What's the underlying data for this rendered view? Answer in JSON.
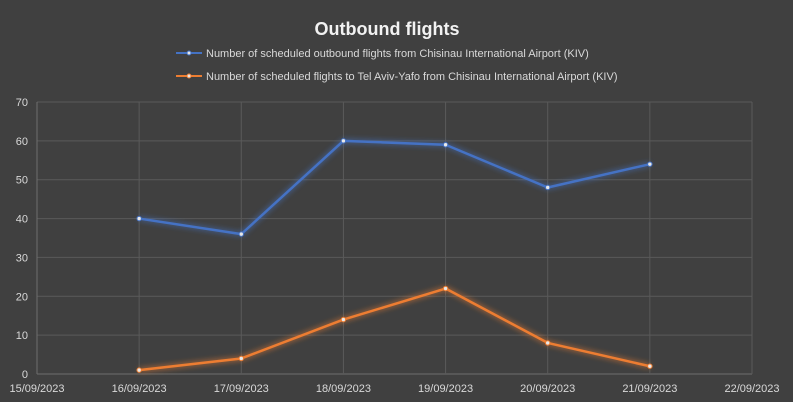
{
  "chart_data": {
    "type": "line",
    "title": "Outbound flights",
    "x_ticks": [
      "15/09/2023",
      "16/09/2023",
      "17/09/2023",
      "18/09/2023",
      "19/09/2023",
      "20/09/2023",
      "21/09/2023",
      "22/09/2023"
    ],
    "y_ticks": [
      "0",
      "10",
      "20",
      "30",
      "40",
      "50",
      "60",
      "70"
    ],
    "ylim": [
      0,
      70
    ],
    "xlim": [
      "15/09/2023",
      "22/09/2023"
    ],
    "grid": true,
    "legend_position": "top",
    "series": [
      {
        "name": "Number of scheduled outbound flights from Chisinau International Airport (KIV)",
        "color": "#4472c4",
        "x": [
          "16/09/2023",
          "17/09/2023",
          "18/09/2023",
          "19/09/2023",
          "20/09/2023",
          "21/09/2023"
        ],
        "values": [
          40,
          36,
          60,
          59,
          48,
          54
        ]
      },
      {
        "name": "Number of scheduled flights to Tel Aviv-Yafo from Chisinau International Airport (KIV)",
        "color": "#ed7d31",
        "x": [
          "16/09/2023",
          "17/09/2023",
          "18/09/2023",
          "19/09/2023",
          "20/09/2023",
          "21/09/2023"
        ],
        "values": [
          1,
          4,
          14,
          22,
          8,
          2
        ]
      }
    ]
  }
}
